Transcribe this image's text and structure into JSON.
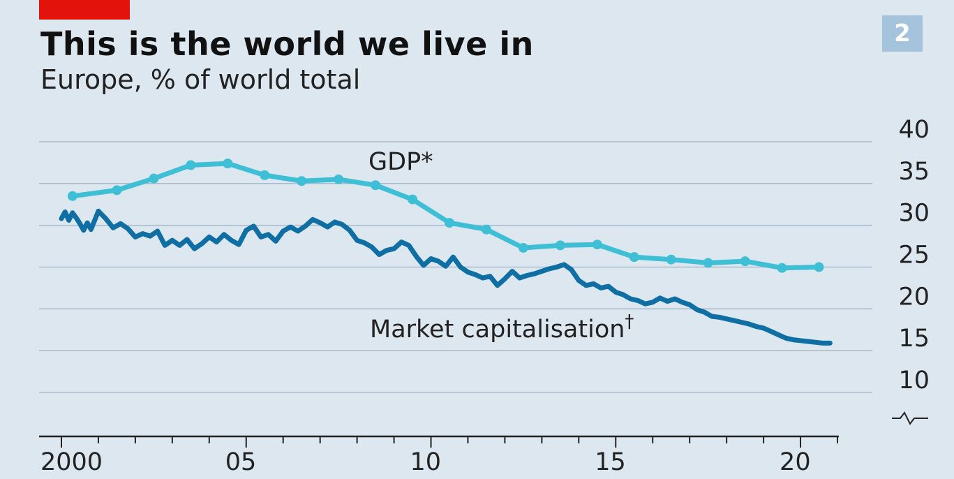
{
  "header": {
    "title": "This is the world we live in",
    "subtitle": "Europe, % of world total",
    "badge": "2"
  },
  "colors": {
    "background": "#dde7f0",
    "gridline": "#a9bccb",
    "gdp": "#3fbfd6",
    "market_cap": "#0f6fa5",
    "accent_tag": "#e3120b",
    "badge": "#a3c4dc"
  },
  "chart_data": {
    "type": "line",
    "title": "This is the world we live in",
    "subtitle": "Europe, % of world total",
    "ylim": [
      10,
      40
    ],
    "yticks": [
      {
        "value": 40,
        "label": "40"
      },
      {
        "value": 35,
        "label": "35"
      },
      {
        "value": 30,
        "label": "30"
      },
      {
        "value": 25,
        "label": "25"
      },
      {
        "value": 20,
        "label": "20"
      },
      {
        "value": 15,
        "label": "15"
      },
      {
        "value": 10,
        "label": "10"
      }
    ],
    "axis_break": true,
    "xlim": [
      2000,
      2021
    ],
    "xticks": [
      {
        "value": 2000,
        "label": "2000"
      },
      {
        "value": 2005,
        "label": "05"
      },
      {
        "value": 2010,
        "label": "10"
      },
      {
        "value": 2015,
        "label": "15"
      },
      {
        "value": 2020,
        "label": "20"
      }
    ],
    "grid": true,
    "series": [
      {
        "name": "GDP*",
        "style": "line-with-markers",
        "x": [
          2000.3,
          2001.5,
          2002.5,
          2003.5,
          2004.5,
          2005.5,
          2006.5,
          2007.5,
          2008.5,
          2009.5,
          2010.5,
          2011.5,
          2012.5,
          2013.5,
          2014.5,
          2015.5,
          2016.5,
          2017.5,
          2018.5,
          2019.5,
          2020.5
        ],
        "y": [
          33.5,
          34.2,
          35.6,
          37.2,
          37.4,
          36.0,
          35.3,
          35.5,
          34.8,
          33.1,
          30.3,
          29.5,
          27.3,
          27.6,
          27.7,
          26.2,
          25.9,
          25.5,
          25.7,
          24.9,
          25.0
        ]
      },
      {
        "name": "Market capitalisation†",
        "style": "line",
        "x": [
          2000.0,
          2000.1,
          2000.2,
          2000.3,
          2000.4,
          2000.5,
          2000.6,
          2000.7,
          2000.8,
          2001.0,
          2001.2,
          2001.4,
          2001.6,
          2001.8,
          2002.0,
          2002.2,
          2002.4,
          2002.6,
          2002.8,
          2003.0,
          2003.2,
          2003.4,
          2003.6,
          2003.8,
          2004.0,
          2004.2,
          2004.4,
          2004.6,
          2004.8,
          2005.0,
          2005.2,
          2005.4,
          2005.6,
          2005.8,
          2006.0,
          2006.2,
          2006.4,
          2006.6,
          2006.8,
          2007.0,
          2007.2,
          2007.4,
          2007.6,
          2007.8,
          2008.0,
          2008.2,
          2008.4,
          2008.6,
          2008.8,
          2009.0,
          2009.2,
          2009.4,
          2009.6,
          2009.8,
          2010.0,
          2010.2,
          2010.4,
          2010.6,
          2010.8,
          2011.0,
          2011.2,
          2011.4,
          2011.6,
          2011.8,
          2012.0,
          2012.2,
          2012.4,
          2012.6,
          2012.8,
          2013.0,
          2013.2,
          2013.4,
          2013.6,
          2013.8,
          2014.0,
          2014.2,
          2014.4,
          2014.6,
          2014.8,
          2015.0,
          2015.2,
          2015.4,
          2015.6,
          2015.8,
          2016.0,
          2016.2,
          2016.4,
          2016.6,
          2016.8,
          2017.0,
          2017.2,
          2017.4,
          2017.6,
          2017.8,
          2018.0,
          2018.2,
          2018.4,
          2018.6,
          2018.8,
          2019.0,
          2019.2,
          2019.4,
          2019.6,
          2019.8,
          2020.0,
          2020.2,
          2020.4,
          2020.6,
          2020.8
        ],
        "y": [
          30.8,
          31.6,
          30.6,
          31.5,
          30.9,
          30.2,
          29.4,
          30.3,
          29.5,
          31.7,
          30.8,
          29.7,
          30.2,
          29.6,
          28.6,
          29.0,
          28.7,
          29.3,
          27.6,
          28.2,
          27.6,
          28.3,
          27.2,
          27.8,
          28.6,
          28.0,
          28.9,
          28.2,
          27.7,
          29.4,
          29.9,
          28.6,
          28.9,
          28.1,
          29.3,
          29.8,
          29.3,
          29.9,
          30.7,
          30.3,
          29.8,
          30.4,
          30.1,
          29.4,
          28.2,
          27.9,
          27.4,
          26.5,
          27.0,
          27.2,
          28.0,
          27.6,
          26.3,
          25.2,
          26.0,
          25.7,
          25.1,
          26.2,
          25.0,
          24.4,
          24.1,
          23.7,
          23.9,
          22.8,
          23.6,
          24.5,
          23.7,
          24.0,
          24.2,
          24.5,
          24.8,
          25.0,
          25.3,
          24.7,
          23.4,
          22.8,
          23.0,
          22.5,
          22.7,
          22.0,
          21.7,
          21.2,
          21.0,
          20.6,
          20.8,
          21.3,
          20.9,
          21.2,
          20.8,
          20.5,
          19.9,
          19.6,
          19.1,
          19.0,
          18.8,
          18.6,
          18.4,
          18.2,
          17.9,
          17.7,
          17.3,
          16.9,
          16.5,
          16.3,
          16.2,
          16.1,
          16.0,
          15.9,
          15.9
        ]
      }
    ],
    "annotations": [
      {
        "text": "GDP*",
        "series": "GDP*"
      },
      {
        "text": "Market capitalisation",
        "superscript": "†",
        "series": "Market capitalisation†"
      }
    ]
  }
}
